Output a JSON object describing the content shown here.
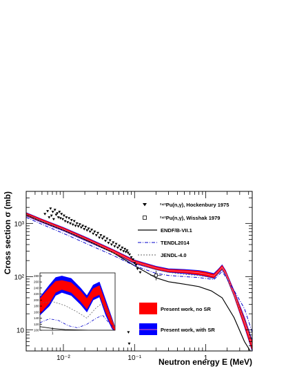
{
  "chart_data": {
    "type": "line",
    "title": "",
    "xlabel": "Neutron energy E (MeV)",
    "ylabel": "Cross section σ (mb)",
    "x_scale": "log",
    "y_scale": "log",
    "xlim": [
      0.003,
      4.5
    ],
    "ylim": [
      4,
      4000
    ],
    "grid": false,
    "legend_placement": "right",
    "x_ticks": [
      {
        "value": 0.01,
        "label": "10⁻²"
      },
      {
        "value": 0.1,
        "label": "10⁻¹"
      },
      {
        "value": 1,
        "label": "1"
      }
    ],
    "y_ticks": [
      {
        "value": 10,
        "label": "10"
      },
      {
        "value": 100,
        "label": "10²"
      },
      {
        "value": 1000,
        "label": "10³"
      }
    ],
    "colors": {
      "present_no_sr": "#ff0000",
      "present_with_sr": "#0000ff",
      "endf": "#000000",
      "tendl": "#0000cc",
      "jendl": "#666666",
      "data_marker": "#000000"
    },
    "series": [
      {
        "name": "²⁴²Pu(n,γ), Hockenbury 1975",
        "kind": "scatter-triangle",
        "x": [
          0.0055,
          0.006,
          0.0063,
          0.0066,
          0.0068,
          0.0071,
          0.0073,
          0.0076,
          0.0079,
          0.0082,
          0.0085,
          0.0088,
          0.0091,
          0.0094,
          0.0098,
          0.0102,
          0.0106,
          0.011,
          0.0115,
          0.012,
          0.0125,
          0.013,
          0.0136,
          0.0142,
          0.0148,
          0.0155,
          0.0162,
          0.017,
          0.0178,
          0.0187,
          0.0196,
          0.0205,
          0.0215,
          0.0226,
          0.0237,
          0.025,
          0.0262,
          0.0275,
          0.029,
          0.0305,
          0.032,
          0.0336,
          0.0354,
          0.0372,
          0.039,
          0.041,
          0.043,
          0.0452,
          0.0475,
          0.05,
          0.0525,
          0.055,
          0.058,
          0.061,
          0.064,
          0.067,
          0.07,
          0.073,
          0.0755,
          0.0785,
          0.081,
          0.085,
          0.09,
          0.095,
          0.1,
          0.105,
          0.11,
          0.12,
          0.082,
          0.084
        ],
        "y": [
          1500,
          1700,
          1300,
          1900,
          1400,
          1650,
          1200,
          1800,
          1450,
          1550,
          1300,
          1650,
          1250,
          1500,
          1200,
          1400,
          1100,
          1300,
          1050,
          1250,
          1000,
          1150,
          950,
          1100,
          900,
          1000,
          880,
          960,
          840,
          900,
          780,
          860,
          740,
          800,
          700,
          760,
          640,
          700,
          600,
          660,
          540,
          600,
          520,
          560,
          470,
          520,
          430,
          480,
          400,
          440,
          370,
          410,
          350,
          380,
          320,
          350,
          300,
          330,
          290,
          310,
          280,
          260,
          230,
          210,
          180,
          165,
          140,
          120,
          9,
          5.5
        ]
      },
      {
        "name": "²⁴²Pu(n,γ), Wisshak 1979",
        "kind": "scatter-open-square",
        "x": [
          0.2
        ],
        "y": [
          105
        ]
      },
      {
        "name": "ENDF/B-VII.1",
        "kind": "line-solid",
        "x": [
          0.003,
          0.005,
          0.01,
          0.02,
          0.05,
          0.1,
          0.2,
          0.3,
          0.5,
          0.8,
          1.2,
          1.7,
          2.5,
          3.5,
          4.5
        ],
        "y": [
          1450,
          1080,
          750,
          500,
          280,
          160,
          95,
          80,
          72,
          65,
          54,
          40,
          17,
          6,
          3.5
        ]
      },
      {
        "name": "TENDL2014",
        "kind": "line-dashdot",
        "x": [
          0.003,
          0.005,
          0.01,
          0.02,
          0.05,
          0.1,
          0.2,
          0.3,
          0.5,
          0.8,
          1.0,
          1.3,
          1.5,
          1.7,
          1.9,
          2.5,
          3.5,
          4.5
        ],
        "y": [
          1300,
          960,
          650,
          430,
          250,
          160,
          115,
          105,
          100,
          96,
          92,
          88,
          105,
          125,
          100,
          55,
          25,
          9
        ]
      },
      {
        "name": "JENDL-4.0",
        "kind": "line-dashed",
        "x": [
          0.003,
          0.005,
          0.01,
          0.02,
          0.05,
          0.1,
          0.2,
          0.3,
          0.5,
          0.8,
          1.0,
          1.3,
          1.5,
          1.7,
          1.9,
          2.5,
          3.5,
          4.5
        ],
        "y": [
          1420,
          1070,
          740,
          490,
          280,
          180,
          135,
          120,
          110,
          105,
          100,
          92,
          115,
          140,
          110,
          45,
          15,
          6
        ]
      },
      {
        "name": "Present work, no SR",
        "kind": "band-red",
        "x": [
          0.003,
          0.005,
          0.01,
          0.02,
          0.05,
          0.1,
          0.2,
          0.3,
          0.5,
          0.8,
          1.0,
          1.3,
          1.5,
          1.7,
          1.9,
          2.5,
          3.5,
          4.5
        ],
        "y": [
          1480,
          1120,
          780,
          520,
          300,
          190,
          145,
          130,
          125,
          118,
          112,
          103,
          125,
          150,
          118,
          48,
          14,
          5
        ],
        "y_low": [
          1400,
          1060,
          740,
          490,
          285,
          180,
          138,
          124,
          118,
          110,
          104,
          96,
          117,
          140,
          110,
          44,
          12,
          4.2
        ],
        "y_high": [
          1560,
          1180,
          820,
          550,
          315,
          200,
          152,
          136,
          132,
          126,
          120,
          110,
          133,
          160,
          126,
          52,
          16,
          5.8
        ]
      },
      {
        "name": "Present work, with SR",
        "kind": "band-blue",
        "x": [
          0.003,
          0.005,
          0.01,
          0.02,
          0.05,
          0.1,
          0.2,
          0.3,
          0.5,
          0.8,
          1.0,
          1.3,
          1.5,
          1.7,
          1.9,
          2.5,
          3.5,
          4.5
        ],
        "y": [
          1480,
          1120,
          780,
          520,
          300,
          190,
          145,
          130,
          125,
          118,
          112,
          103,
          125,
          150,
          118,
          48,
          14,
          5
        ],
        "y_low": [
          1380,
          1040,
          725,
          480,
          280,
          176,
          135,
          121,
          115,
          107,
          101,
          93,
          114,
          136,
          107,
          43,
          11.5,
          4
        ],
        "y_high": [
          1590,
          1200,
          835,
          560,
          322,
          204,
          156,
          140,
          136,
          130,
          124,
          114,
          137,
          165,
          130,
          54,
          17,
          6.2
        ]
      }
    ],
    "inset": {
      "description_visible": "zoomed view of 1.0-2.0 MeV region",
      "x_tick_labels": [
        "1"
      ],
      "y_tick_labels": [
        "100",
        "120",
        "140",
        "160",
        "180",
        "200",
        "220",
        "240",
        "260",
        "280"
      ]
    }
  },
  "legend_items": [
    "²⁴²Pu(n,γ), Hockenbury 1975",
    "²⁴²Pu(n,γ), Wisshak 1979",
    "ENDF/B-VII.1",
    "TENDL2014",
    "JENDL-4.0",
    "Present work, no SR",
    "Present work, with SR"
  ]
}
